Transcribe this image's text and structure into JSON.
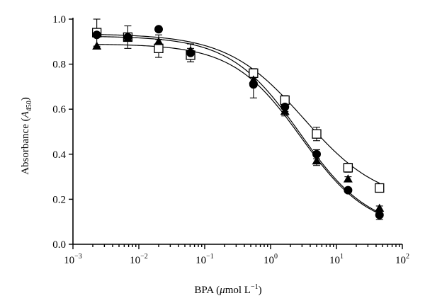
{
  "chart_data": {
    "type": "scatter",
    "xlabel_parts": [
      "BPA (",
      "μ",
      "mol L",
      "−1",
      ")"
    ],
    "ylabel_parts": [
      "Absorbance (",
      "A",
      "450",
      ")"
    ],
    "xscale": "log",
    "xlim": [
      0.001,
      100
    ],
    "ylim": [
      0.0,
      1.0
    ],
    "x_ticks": [
      {
        "value": 0.001,
        "base": "10",
        "exp": "−3"
      },
      {
        "value": 0.01,
        "base": "10",
        "exp": "−2"
      },
      {
        "value": 0.1,
        "base": "10",
        "exp": "−1"
      },
      {
        "value": 1,
        "base": "10",
        "exp": "0"
      },
      {
        "value": 10,
        "base": "10",
        "exp": "1"
      },
      {
        "value": 100,
        "base": "10",
        "exp": "2"
      }
    ],
    "y_ticks": [
      "0.0",
      "0.2",
      "0.4",
      "0.6",
      "0.8",
      "1.0"
    ],
    "grid": false,
    "x": [
      0.0023,
      0.0068,
      0.02,
      0.061,
      0.55,
      1.65,
      5.0,
      15.0,
      45.0
    ],
    "series": [
      {
        "marker": "open-square",
        "values": [
          0.94,
          0.92,
          0.87,
          0.84,
          0.76,
          0.64,
          0.49,
          0.34,
          0.25
        ],
        "errors": [
          0.06,
          0.05,
          0.04,
          0.03,
          0.02,
          0.02,
          0.03,
          0.02,
          0.01
        ],
        "fit": {
          "top": 0.935,
          "bottom": 0.18,
          "ec50": 3.2,
          "hill": 0.75
        }
      },
      {
        "marker": "filled-circle",
        "values": [
          0.93,
          0.92,
          0.955,
          0.85,
          0.71,
          0.61,
          0.4,
          0.24,
          0.13
        ],
        "errors": [
          0.0,
          0.0,
          0.0,
          0.04,
          0.06,
          0.02,
          0.02,
          0.01,
          0.02
        ],
        "fit": {
          "top": 0.925,
          "bottom": 0.06,
          "ec50": 2.8,
          "hill": 0.82
        }
      },
      {
        "marker": "filled-triangle",
        "values": [
          0.88,
          0.915,
          0.9,
          0.86,
          0.73,
          0.59,
          0.37,
          0.29,
          0.16
        ],
        "errors": [
          0.0,
          0.0,
          0.03,
          0.03,
          0.03,
          0.02,
          0.02,
          0.01,
          0.01
        ],
        "fit": {
          "top": 0.89,
          "bottom": 0.06,
          "ec50": 2.9,
          "hill": 0.84
        }
      }
    ]
  }
}
